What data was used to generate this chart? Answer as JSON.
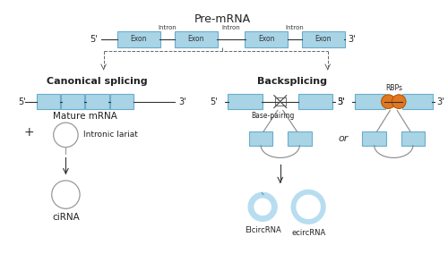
{
  "title": "Pre-mRNA",
  "exon_color": "#a8d4e6",
  "exon_edge_color": "#6aadcc",
  "line_color": "#333333",
  "bg_color": "#ffffff",
  "orange_color": "#e07820",
  "circle_color_light": "#b8ddf0",
  "gray_circle": "#999999",
  "canonical_label": "Canonical splicing",
  "backsplicing_label": "Backsplicing",
  "mature_mrna_label": "Mature mRNA",
  "intronic_lariat_label": "Intronic lariat",
  "ciRNA_label": "ciRNA",
  "base_pairing_label": "Base-pairing",
  "rbps_label": "RBPs",
  "or_label": "or",
  "eicirc_label": "EIcircRNA",
  "ecirc_label": "ecircRNA",
  "font_size_title": 9,
  "font_size_label": 7.5,
  "font_size_small": 6,
  "font_size_section": 8
}
